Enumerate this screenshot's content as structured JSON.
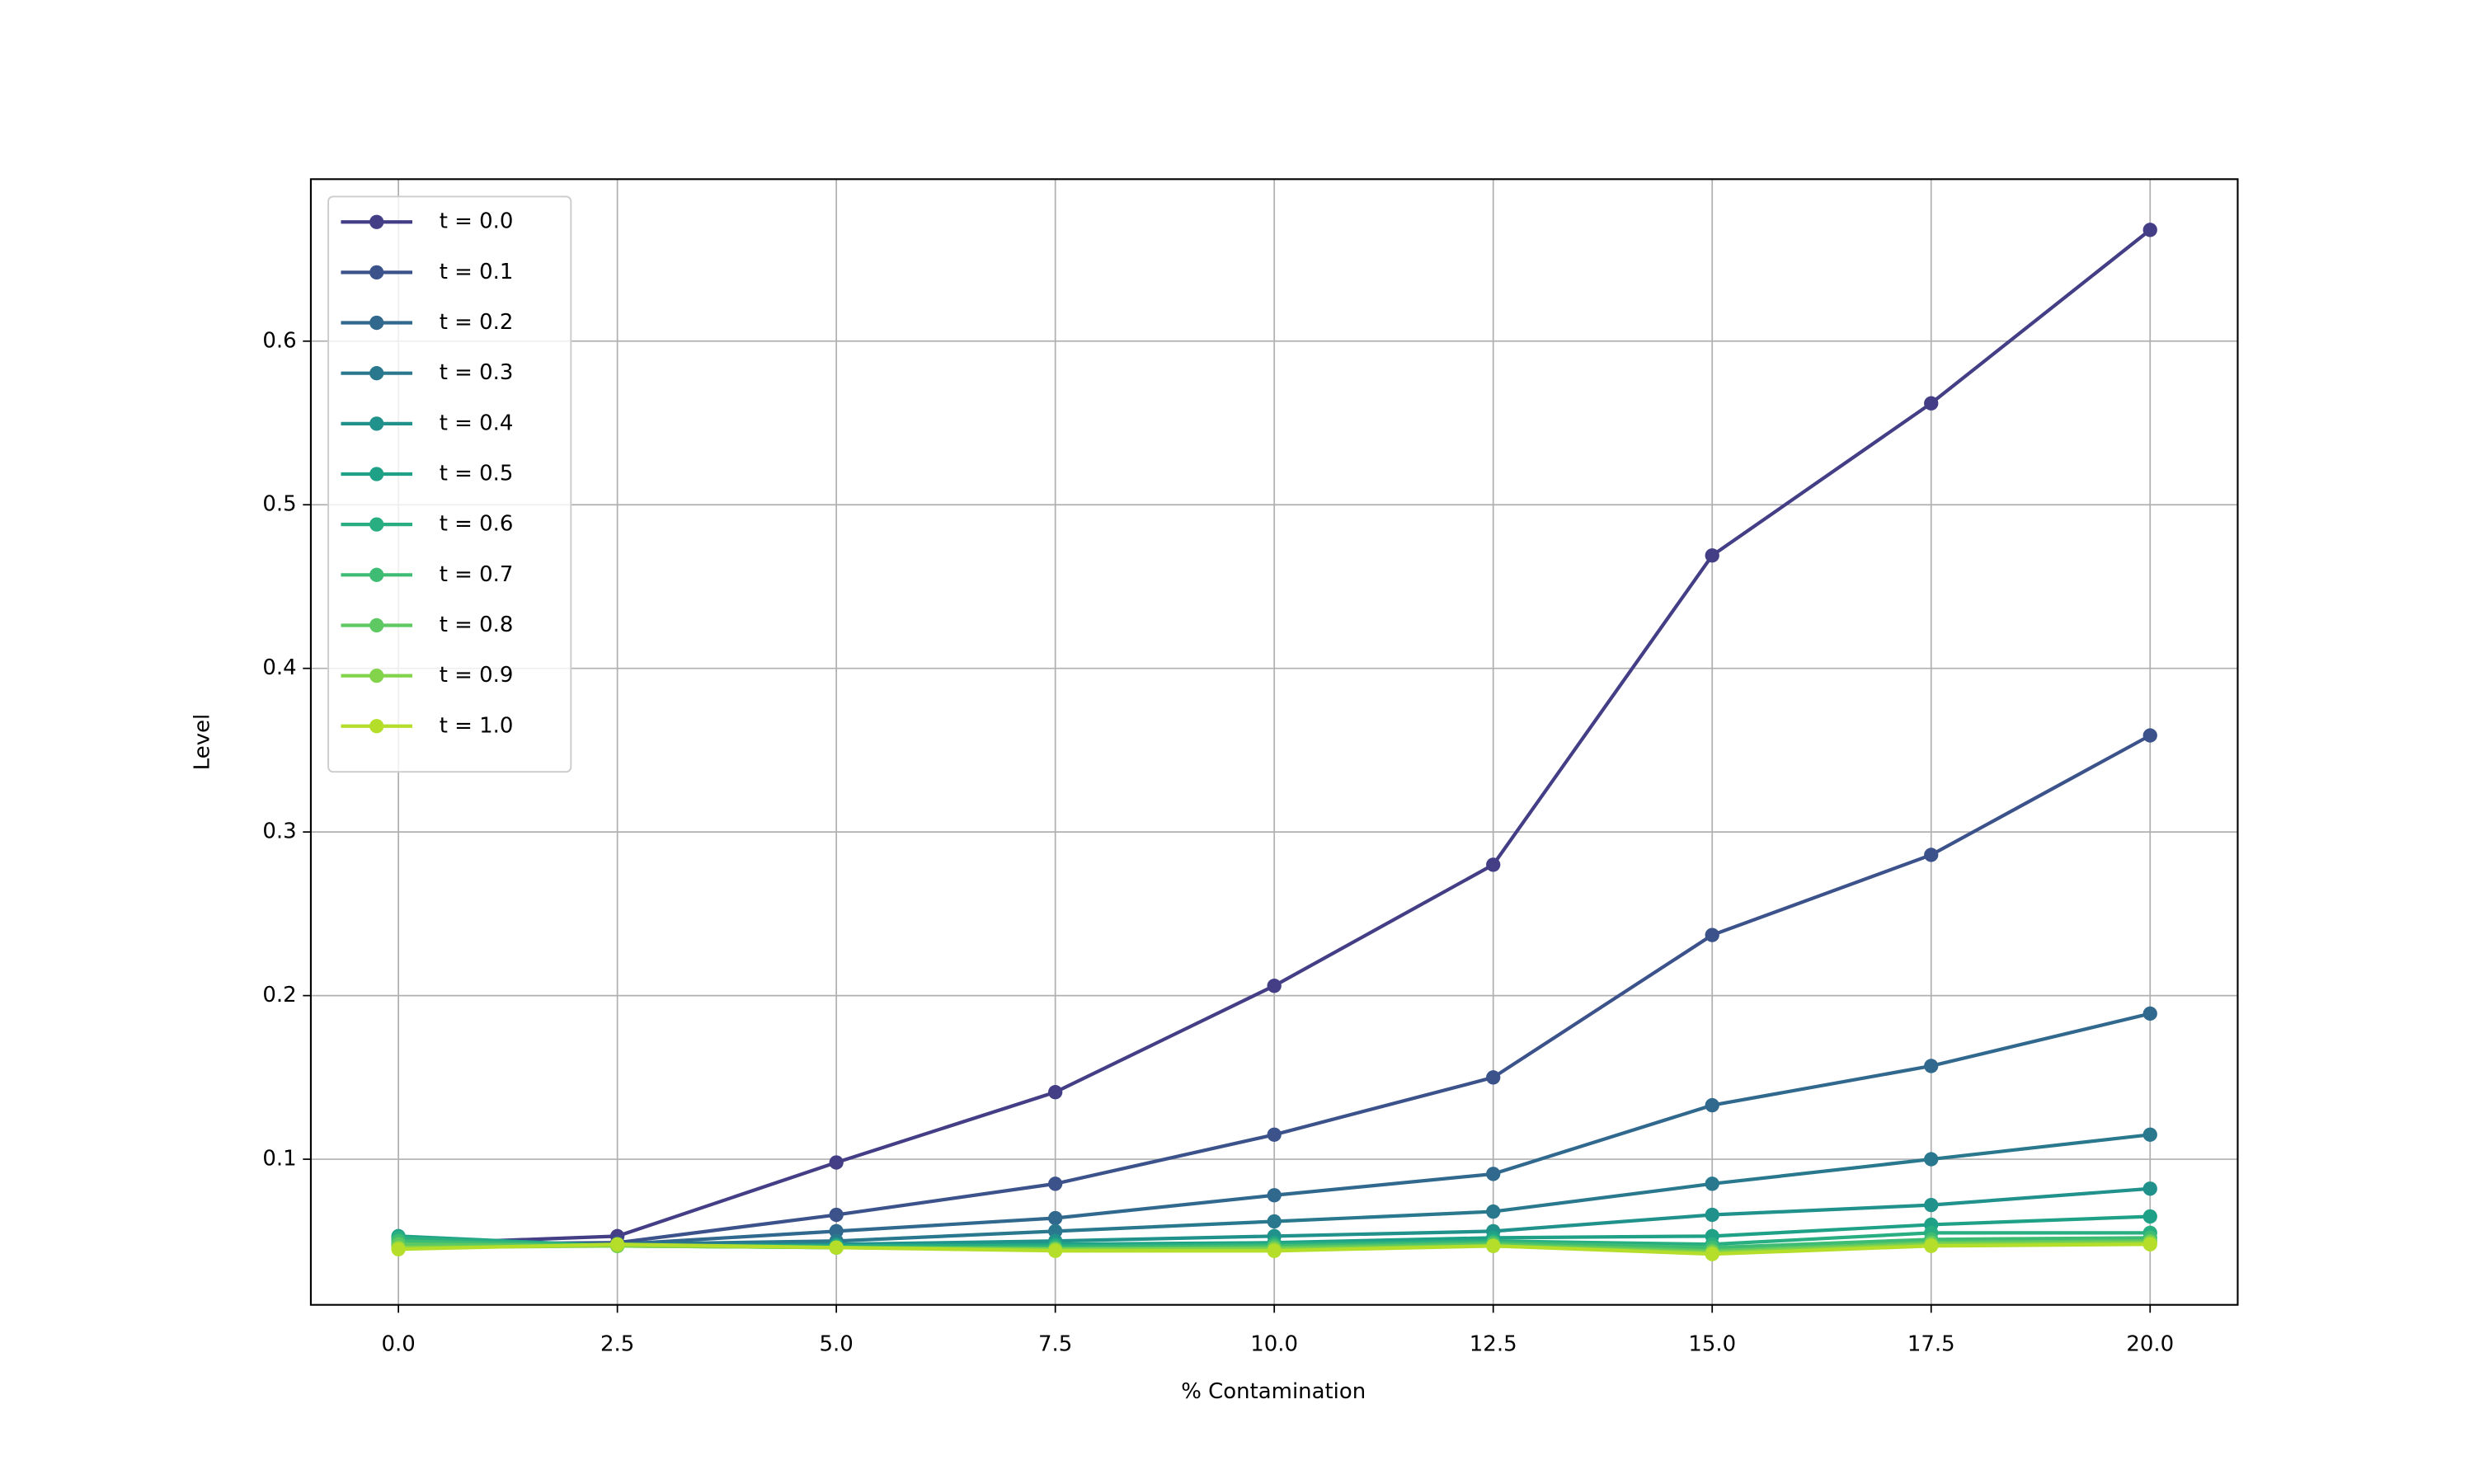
{
  "chart_data": {
    "type": "line",
    "xlabel": "% Contamination",
    "ylabel": "Level",
    "x": [
      0,
      2.5,
      5,
      7.5,
      10,
      12.5,
      15,
      17.5,
      20
    ],
    "series": [
      {
        "name": "t = 0.0",
        "color": "#433e85",
        "values": [
          0.048,
          0.053,
          0.098,
          0.141,
          0.206,
          0.28,
          0.469,
          0.562,
          0.668
        ]
      },
      {
        "name": "t = 0.1",
        "color": "#3b528b",
        "values": [
          0.048,
          0.049,
          0.066,
          0.085,
          0.115,
          0.15,
          0.237,
          0.286,
          0.359
        ]
      },
      {
        "name": "t = 0.2",
        "color": "#31688e",
        "values": [
          0.048,
          0.048,
          0.056,
          0.064,
          0.078,
          0.091,
          0.133,
          0.157,
          0.189
        ]
      },
      {
        "name": "t = 0.3",
        "color": "#2a788e",
        "values": [
          0.05,
          0.048,
          0.05,
          0.056,
          0.062,
          0.068,
          0.085,
          0.1,
          0.115
        ]
      },
      {
        "name": "t = 0.4",
        "color": "#21918c",
        "values": [
          0.052,
          0.047,
          0.048,
          0.05,
          0.053,
          0.056,
          0.066,
          0.072,
          0.082
        ]
      },
      {
        "name": "t = 0.5",
        "color": "#1fa187",
        "values": [
          0.053,
          0.047,
          0.047,
          0.048,
          0.049,
          0.052,
          0.053,
          0.06,
          0.065
        ]
      },
      {
        "name": "t = 0.6",
        "color": "#28ae80",
        "values": [
          0.052,
          0.047,
          0.047,
          0.047,
          0.048,
          0.05,
          0.048,
          0.055,
          0.055
        ]
      },
      {
        "name": "t = 0.7",
        "color": "#3fbc73",
        "values": [
          0.05,
          0.047,
          0.046,
          0.046,
          0.047,
          0.049,
          0.046,
          0.051,
          0.052
        ]
      },
      {
        "name": "t = 0.8",
        "color": "#5ec962",
        "values": [
          0.048,
          0.047,
          0.046,
          0.045,
          0.046,
          0.048,
          0.044,
          0.049,
          0.05
        ]
      },
      {
        "name": "t = 0.9",
        "color": "#84d44b",
        "values": [
          0.046,
          0.047,
          0.046,
          0.045,
          0.045,
          0.047,
          0.043,
          0.048,
          0.049
        ]
      },
      {
        "name": "t = 1.0",
        "color": "#b5de2b",
        "values": [
          0.045,
          0.048,
          0.046,
          0.044,
          0.044,
          0.047,
          0.042,
          0.047,
          0.048
        ]
      }
    ],
    "xlim": [
      -1,
      21
    ],
    "ylim": [
      0.011,
      0.699
    ],
    "xticks": [
      {
        "value": 0,
        "label": "0.0"
      },
      2.5,
      {
        "value": 5,
        "label": "5.0"
      },
      7.5,
      {
        "value": 10,
        "label": "10.0"
      },
      12.5,
      {
        "value": 15,
        "label": "15.0"
      },
      17.5,
      {
        "value": 20,
        "label": "20.0"
      }
    ],
    "yticks": [
      0.1,
      0.2,
      0.3,
      0.4,
      0.5,
      0.6
    ],
    "grid": true,
    "legend": "upper left"
  }
}
